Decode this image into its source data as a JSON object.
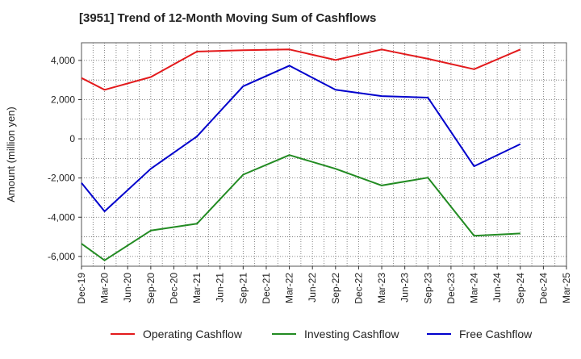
{
  "chart_data": {
    "type": "line",
    "title": "[3951]  Trend of 12-Month Moving Sum of Cashflows",
    "ylabel": "Amount (million yen)",
    "xlabel": "",
    "ylim": [
      -6500,
      4900
    ],
    "yticks": [
      4000,
      2000,
      0,
      -2000,
      -4000,
      -6000
    ],
    "ytick_labels": [
      "4,000",
      "2,000",
      "0",
      "-2,000",
      "-4,000",
      "-6,000"
    ],
    "categories": [
      "Dec-19",
      "Mar-20",
      "Jun-20",
      "Sep-20",
      "Dec-20",
      "Mar-21",
      "Jun-21",
      "Sep-21",
      "Dec-21",
      "Mar-22",
      "Jun-22",
      "Sep-22",
      "Dec-22",
      "Mar-23",
      "Jun-23",
      "Sep-23",
      "Dec-23",
      "Mar-24",
      "Jun-24",
      "Sep-24",
      "Dec-24",
      "Mar-25"
    ],
    "grid": true,
    "legend_position": "bottom",
    "series": [
      {
        "name": "Operating Cashflow",
        "color": "#e31a1c",
        "values": [
          3100,
          2500,
          null,
          3150,
          null,
          4450,
          null,
          4520,
          null,
          4560,
          null,
          4020,
          null,
          4560,
          null,
          4080,
          null,
          3550,
          null,
          4560,
          null,
          null
        ]
      },
      {
        "name": "Investing Cashflow",
        "color": "#228b22",
        "values": [
          -5350,
          -6200,
          null,
          -4680,
          null,
          -4330,
          null,
          -1830,
          null,
          -830,
          null,
          -1530,
          null,
          -2380,
          null,
          -1980,
          null,
          -4950,
          null,
          -4830,
          null,
          null
        ]
      },
      {
        "name": "Free Cashflow",
        "color": "#0000cc",
        "values": [
          -2250,
          -3700,
          null,
          -1530,
          null,
          120,
          null,
          2680,
          null,
          3730,
          null,
          2500,
          null,
          2180,
          null,
          2100,
          null,
          -1400,
          null,
          -270,
          null,
          null
        ]
      }
    ]
  }
}
